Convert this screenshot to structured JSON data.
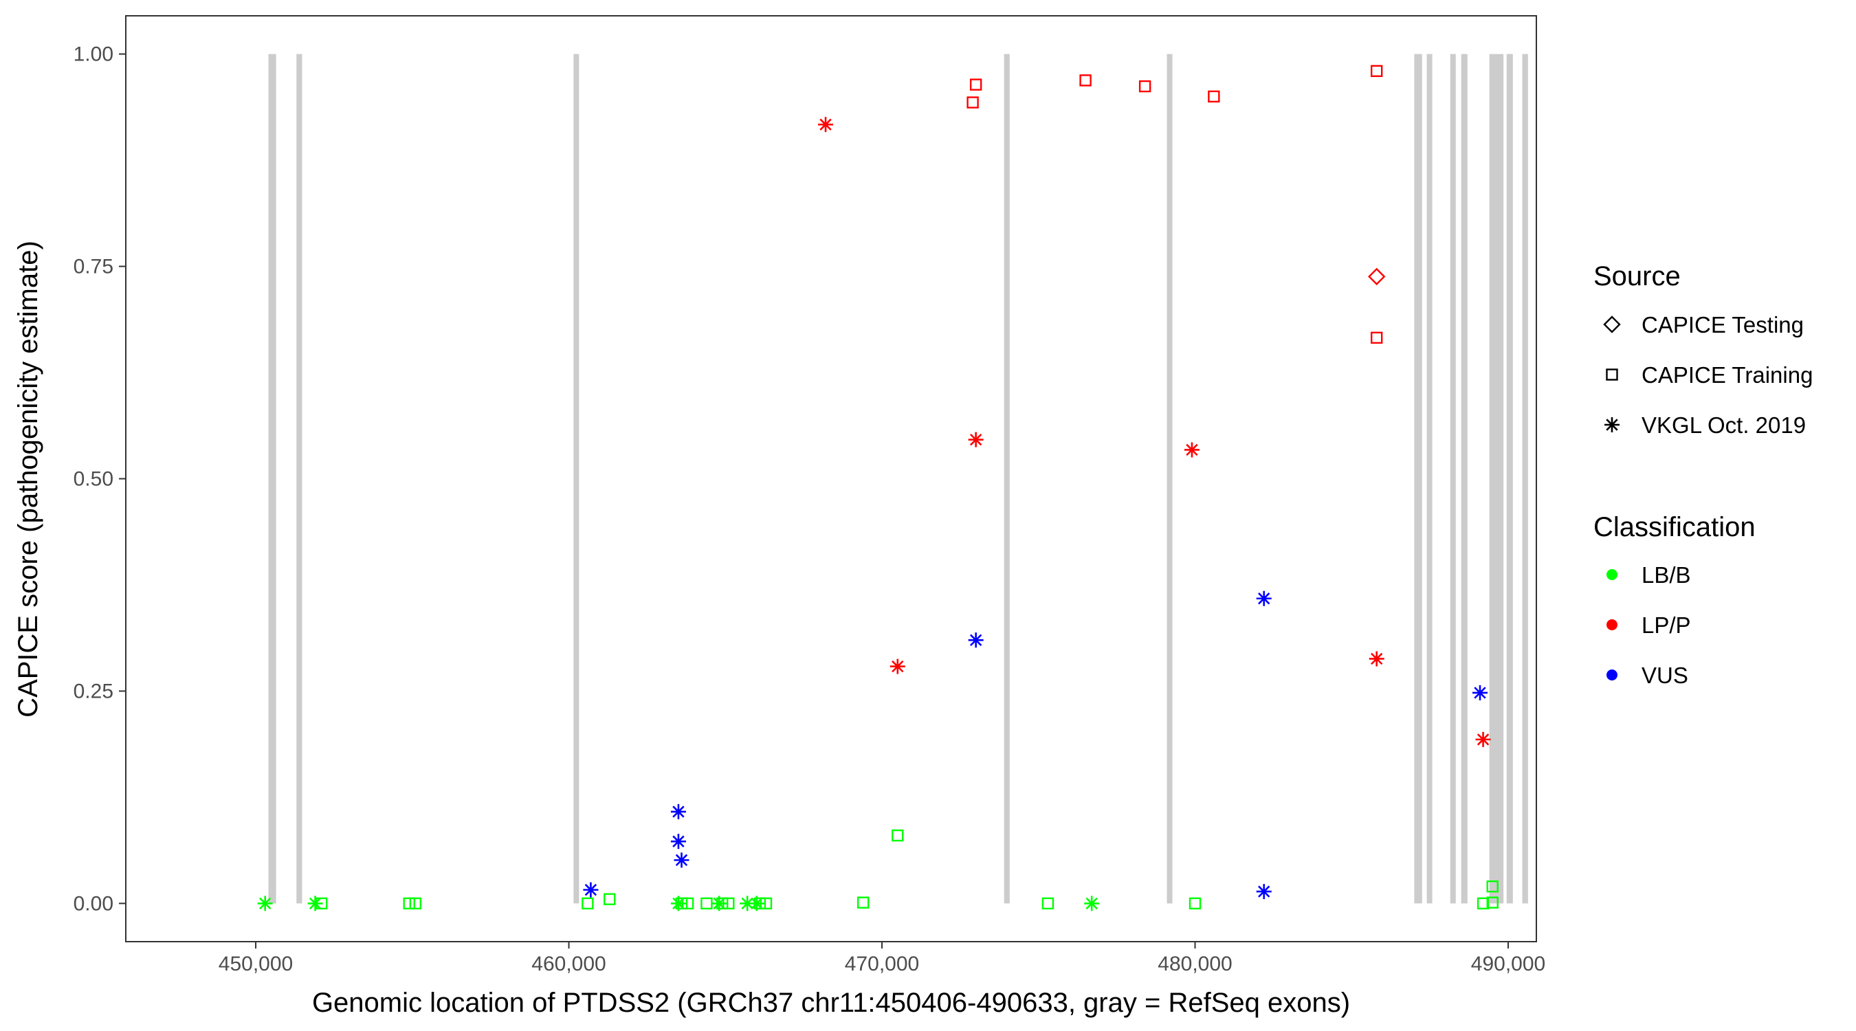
{
  "chart_data": {
    "type": "scatter",
    "xlabel": "Genomic location of PTDSS2 (GRCh37 chr11:450406-490633, gray = RefSeq exons)",
    "ylabel": "CAPICE score (pathogenicity estimate)",
    "xlim": [
      445850,
      490900
    ],
    "ylim": [
      -0.045,
      1.045
    ],
    "x_ticks": [
      450000,
      460000,
      470000,
      480000,
      490000
    ],
    "x_tick_labels": [
      "450,000",
      "460,000",
      "470,000",
      "480,000",
      "490,000"
    ],
    "y_ticks": [
      0.0,
      0.25,
      0.5,
      0.75,
      1.0
    ],
    "y_tick_labels": [
      "0.00",
      "0.25",
      "0.50",
      "0.75",
      "1.00"
    ],
    "grid": false,
    "exon_color": "#cccccc",
    "exons": [
      [
        450406,
        450650
      ],
      [
        451300,
        451480
      ],
      [
        460150,
        460300
      ],
      [
        473900,
        474080
      ],
      [
        479100,
        479220
      ],
      [
        487000,
        487250
      ],
      [
        487400,
        487550
      ],
      [
        488150,
        488300
      ],
      [
        488500,
        488700
      ],
      [
        489400,
        489850
      ],
      [
        489950,
        490150
      ],
      [
        490450,
        490633
      ]
    ],
    "shape_legend": {
      "title": "Source",
      "items": [
        {
          "label": "CAPICE Testing",
          "shape": "diamond"
        },
        {
          "label": "CAPICE Training",
          "shape": "square"
        },
        {
          "label": "VKGL Oct. 2019",
          "shape": "asterisk"
        }
      ]
    },
    "color_legend": {
      "title": "Classification",
      "items": [
        {
          "label": "LB/B",
          "color": "#00ff00"
        },
        {
          "label": "LP/P",
          "color": "#ff0000"
        },
        {
          "label": "VUS",
          "color": "#0000ff"
        }
      ]
    },
    "series": [
      {
        "class": "LB/B",
        "source": "VKGL Oct. 2019",
        "color": "#00ff00",
        "shape": "asterisk",
        "points": [
          [
            450300,
            0.0
          ],
          [
            451900,
            0.0
          ],
          [
            463500,
            0.0
          ],
          [
            464800,
            0.0
          ],
          [
            465700,
            0.0
          ],
          [
            466000,
            0.0
          ],
          [
            476700,
            0.0
          ]
        ]
      },
      {
        "class": "LB/B",
        "source": "CAPICE Training",
        "color": "#00ff00",
        "shape": "square",
        "points": [
          [
            452100,
            0.0
          ],
          [
            454900,
            0.0
          ],
          [
            455100,
            0.0
          ],
          [
            460600,
            0.0
          ],
          [
            461300,
            0.005
          ],
          [
            463600,
            0.0
          ],
          [
            463800,
            0.0
          ],
          [
            464400,
            0.0
          ],
          [
            464900,
            0.0
          ],
          [
            465100,
            0.0
          ],
          [
            466100,
            0.0
          ],
          [
            466300,
            0.0
          ],
          [
            469400,
            0.001
          ],
          [
            470500,
            0.08
          ],
          [
            475300,
            0.0
          ],
          [
            480000,
            0.0
          ],
          [
            489200,
            0.0
          ],
          [
            489500,
            0.02
          ],
          [
            489500,
            0.001
          ]
        ]
      },
      {
        "class": "LP/P",
        "source": "VKGL Oct. 2019",
        "color": "#ff0000",
        "shape": "asterisk",
        "points": [
          [
            468200,
            0.917
          ],
          [
            470500,
            0.279
          ],
          [
            473000,
            0.546
          ],
          [
            479900,
            0.534
          ],
          [
            485800,
            0.288
          ],
          [
            489200,
            0.193
          ]
        ]
      },
      {
        "class": "LP/P",
        "source": "CAPICE Training",
        "color": "#ff0000",
        "shape": "square",
        "points": [
          [
            472900,
            0.943
          ],
          [
            473000,
            0.964
          ],
          [
            476500,
            0.969
          ],
          [
            478400,
            0.962
          ],
          [
            480600,
            0.95
          ],
          [
            485800,
            0.98
          ],
          [
            485800,
            0.666
          ]
        ]
      },
      {
        "class": "LP/P",
        "source": "CAPICE Testing",
        "color": "#ff0000",
        "shape": "diamond",
        "points": [
          [
            485800,
            0.738
          ]
        ]
      },
      {
        "class": "VUS",
        "source": "VKGL Oct. 2019",
        "color": "#0000ff",
        "shape": "asterisk",
        "points": [
          [
            460700,
            0.016
          ],
          [
            463500,
            0.108
          ],
          [
            463500,
            0.073
          ],
          [
            463600,
            0.051
          ],
          [
            473000,
            0.31
          ],
          [
            482200,
            0.359
          ],
          [
            482200,
            0.014
          ],
          [
            489100,
            0.248
          ]
        ]
      }
    ]
  }
}
